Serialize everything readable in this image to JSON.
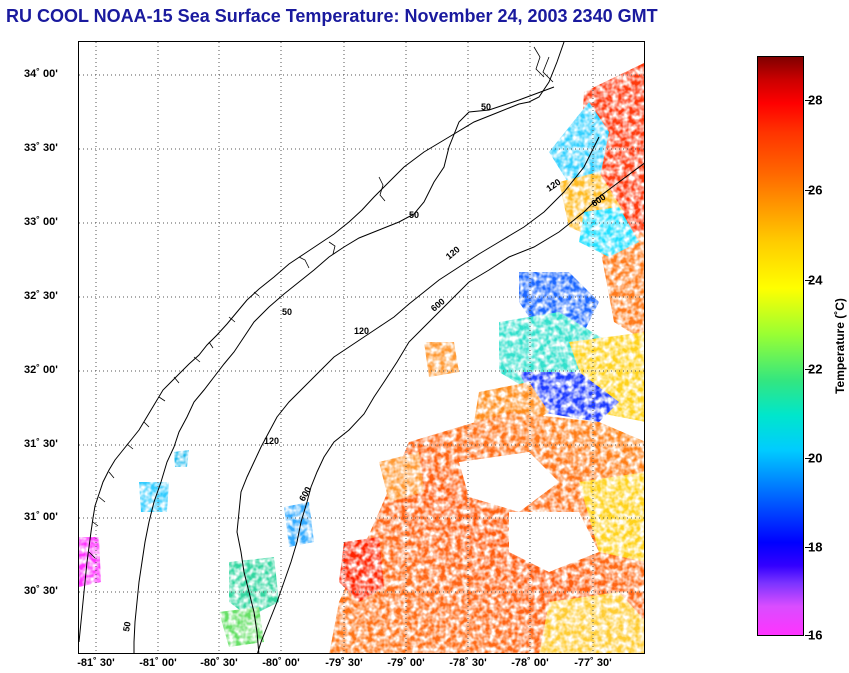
{
  "title": "RU COOL  NOAA-15  Sea Surface Temperature:  November 24, 2003 2340 GMT",
  "latitude_labels": [
    "34˚ 00'",
    "33˚ 30'",
    "33˚ 00'",
    "32˚ 30'",
    "32˚ 00'",
    "31˚ 30'",
    "31˚ 00'",
    "30˚ 30'"
  ],
  "longitude_labels": [
    "-81˚ 30'",
    "-81˚ 00'",
    "-80˚ 30'",
    "-80˚ 00'",
    "-79˚ 30'",
    "-79˚ 00'",
    "-78˚ 30'",
    "-78˚ 00'",
    "-77˚ 30'"
  ],
  "colorbar": {
    "title": "Temperature (˚C)",
    "ticks": [
      "28",
      "26",
      "24",
      "22",
      "20",
      "18",
      "16"
    ]
  },
  "contours": {
    "label_50": "50",
    "label_120": "120",
    "label_600": "600"
  },
  "colors": {
    "title": "#1a1a9e",
    "coast": "#000000",
    "grid": "#555555"
  }
}
